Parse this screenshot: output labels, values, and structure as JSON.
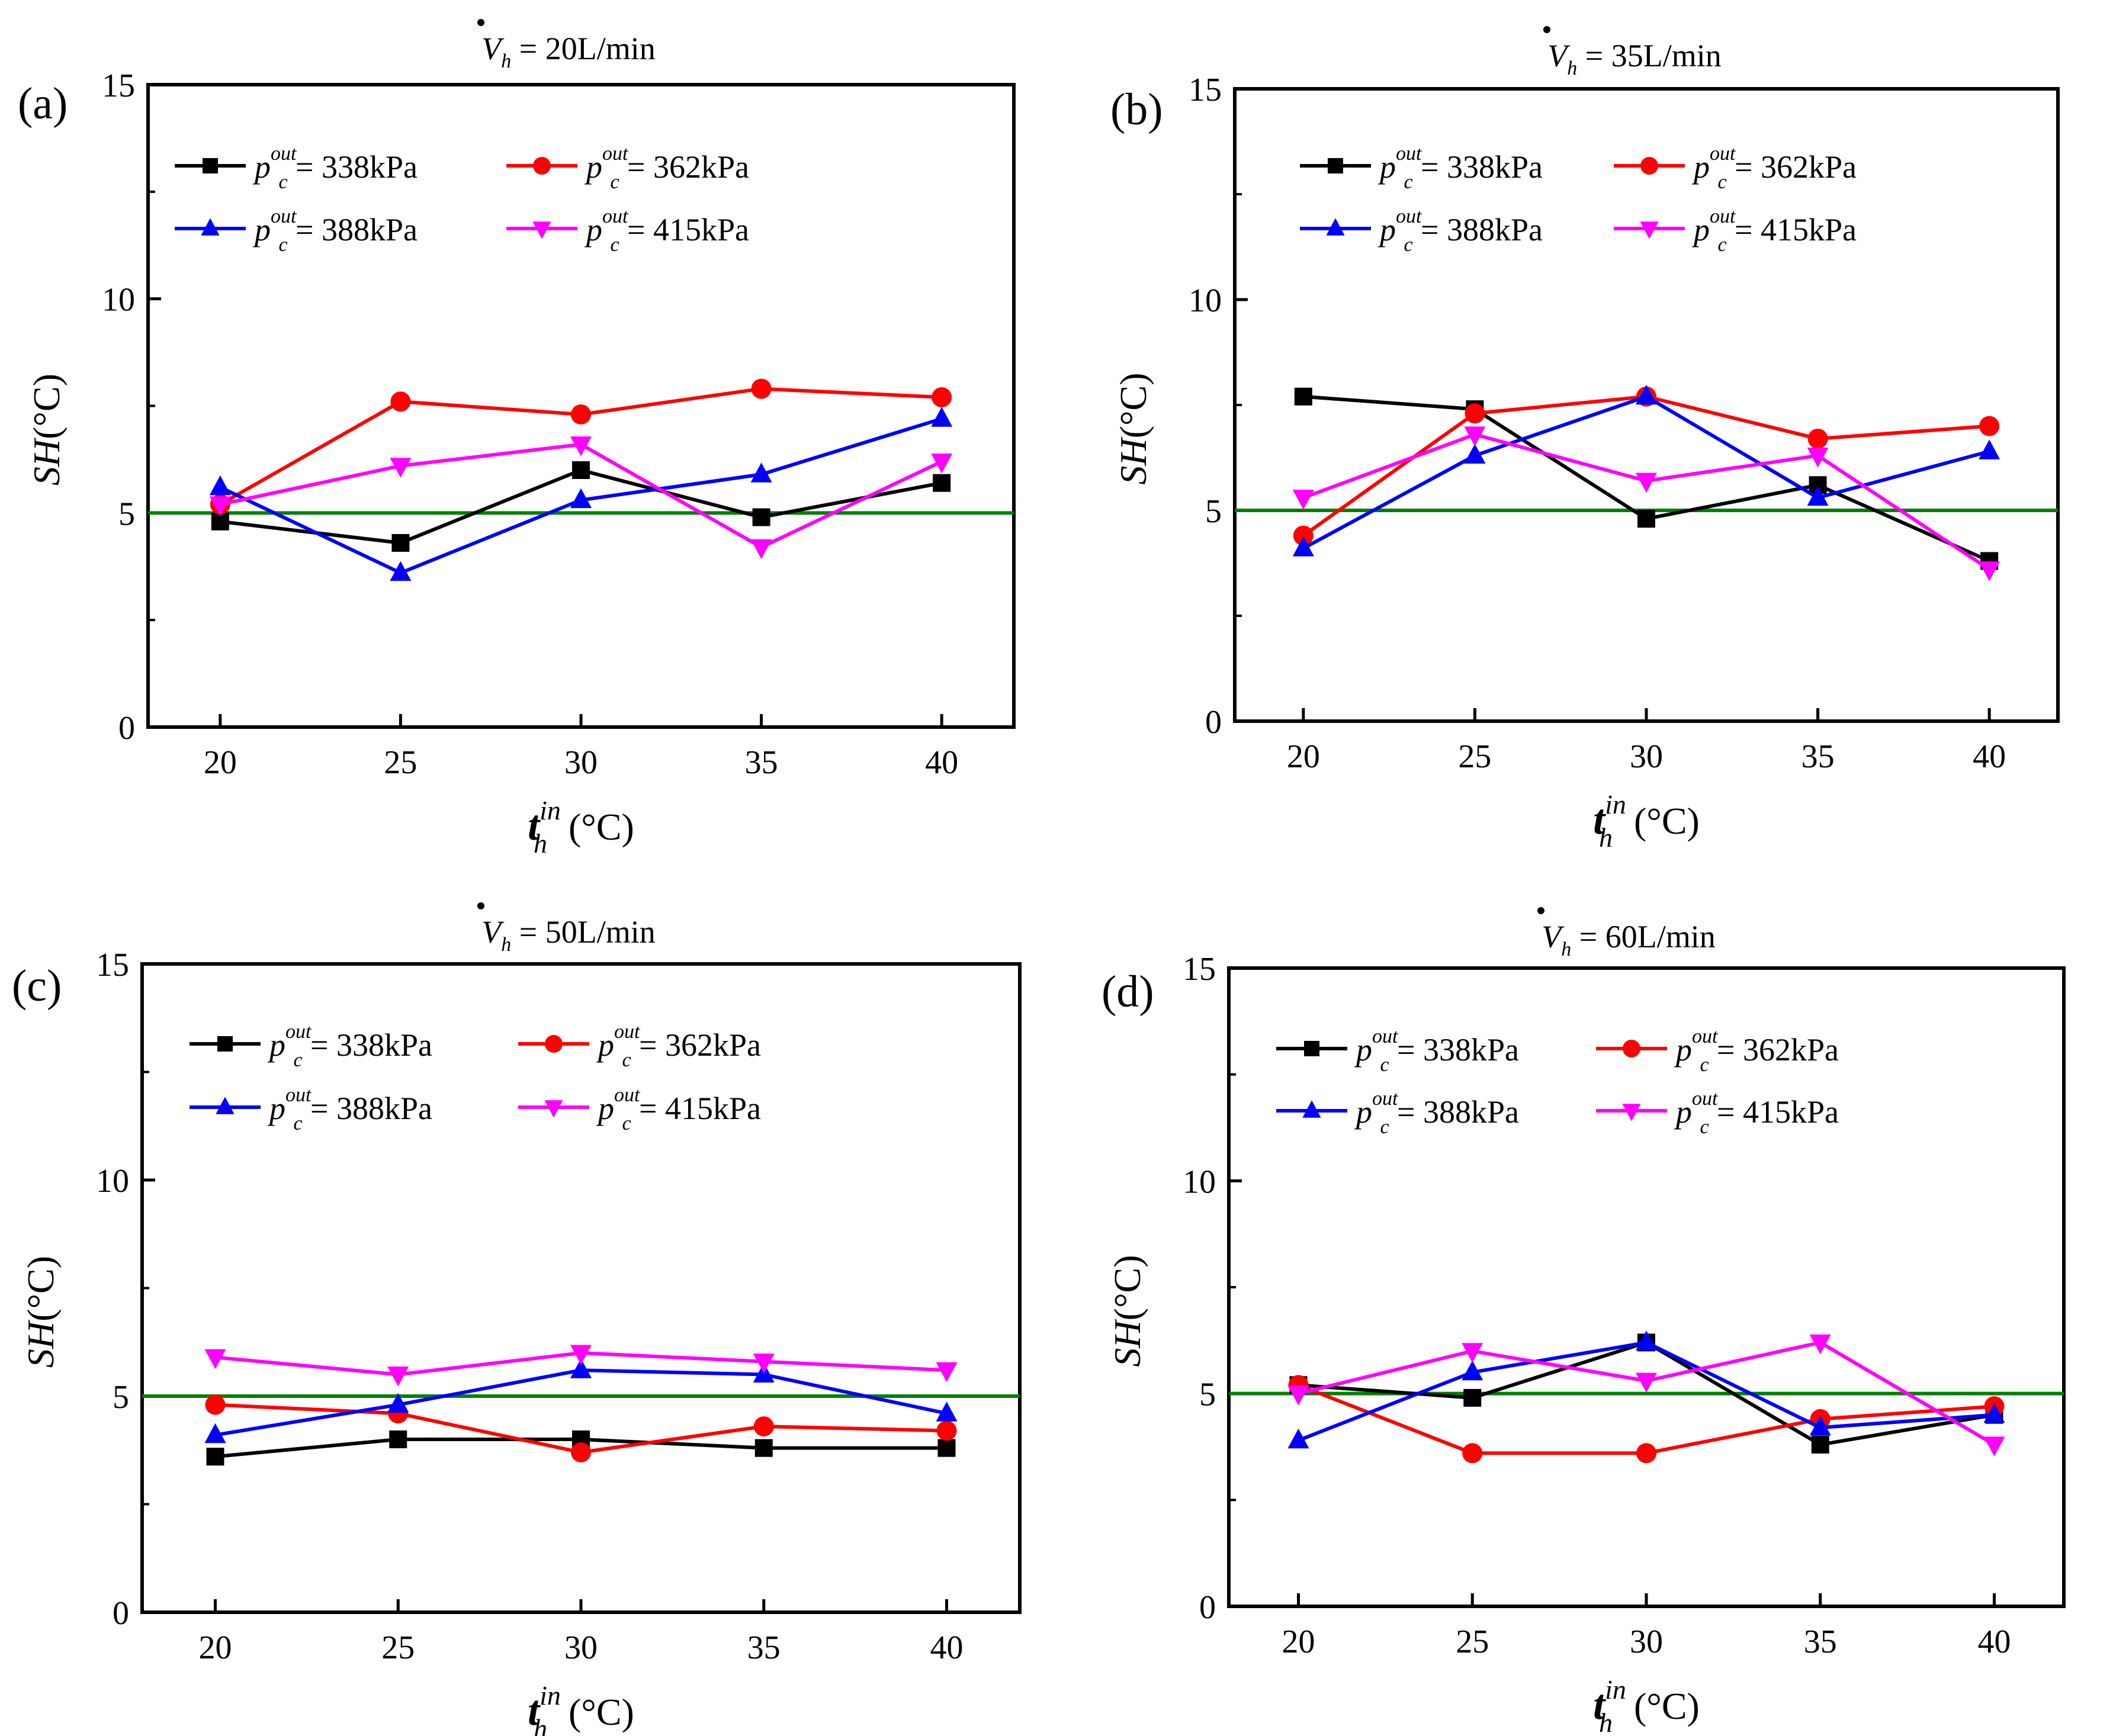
{
  "colors": {
    "s338": "#000000",
    "s362": "#ff0000",
    "s388": "#0000ff",
    "s415": "#ff00ff",
    "threshold": "#008000"
  },
  "legend": {
    "p_symbol": "p",
    "p_sup": "out",
    "p_sub": "c",
    "eq": "=",
    "entries": [
      "338kPa",
      "362kPa",
      "388kPa",
      "415kPa"
    ]
  },
  "axes_text": {
    "ylabel_main": "SH",
    "ylabel_unit": "(°C)",
    "xlabel_main": "t",
    "xlabel_sup": "in",
    "xlabel_sub": "h",
    "xlabel_unit": "(°C)",
    "title_symbol": "V",
    "title_sub": "h",
    "title_eq": "="
  },
  "chart_data": [
    {
      "type": "line",
      "panel": "(a)",
      "title_value": "20L/min",
      "x": [
        20,
        25,
        30,
        35,
        40
      ],
      "xticks": [
        "20",
        "25",
        "30",
        "35",
        "40"
      ],
      "yticks": [
        "0",
        "5",
        "10",
        "15"
      ],
      "ylim": [
        0,
        15
      ],
      "xlim": [
        18,
        42
      ],
      "threshold": 5,
      "series": [
        {
          "name": "338kPa",
          "marker": "square",
          "values": [
            4.8,
            4.3,
            6.0,
            4.9,
            5.7
          ]
        },
        {
          "name": "362kPa",
          "marker": "circle",
          "values": [
            5.2,
            7.6,
            7.3,
            7.9,
            7.7
          ]
        },
        {
          "name": "388kPa",
          "marker": "triangle-up",
          "values": [
            5.6,
            3.6,
            5.3,
            5.9,
            7.2
          ]
        },
        {
          "name": "415kPa",
          "marker": "triangle-down",
          "values": [
            5.2,
            6.1,
            6.6,
            4.2,
            6.2
          ]
        }
      ]
    },
    {
      "type": "line",
      "panel": "(b)",
      "title_value": "35L/min",
      "x": [
        20,
        25,
        30,
        35,
        40
      ],
      "xticks": [
        "20",
        "25",
        "30",
        "35",
        "40"
      ],
      "yticks": [
        "0",
        "5",
        "10",
        "15"
      ],
      "ylim": [
        0,
        15
      ],
      "xlim": [
        18,
        42
      ],
      "threshold": 5,
      "series": [
        {
          "name": "338kPa",
          "marker": "square",
          "values": [
            7.7,
            7.4,
            4.8,
            5.6,
            3.8
          ]
        },
        {
          "name": "362kPa",
          "marker": "circle",
          "values": [
            4.4,
            7.3,
            7.7,
            6.7,
            7.0
          ]
        },
        {
          "name": "388kPa",
          "marker": "triangle-up",
          "values": [
            4.1,
            6.3,
            7.7,
            5.3,
            6.4
          ]
        },
        {
          "name": "415kPa",
          "marker": "triangle-down",
          "values": [
            5.3,
            6.8,
            5.7,
            6.3,
            3.6
          ]
        }
      ]
    },
    {
      "type": "line",
      "panel": "(c)",
      "title_value": "50L/min",
      "x": [
        20,
        25,
        30,
        35,
        40
      ],
      "xticks": [
        "20",
        "25",
        "30",
        "35",
        "40"
      ],
      "yticks": [
        "0",
        "5",
        "10",
        "15"
      ],
      "ylim": [
        0,
        15
      ],
      "xlim": [
        18,
        42
      ],
      "threshold": 5,
      "series": [
        {
          "name": "338kPa",
          "marker": "square",
          "values": [
            3.6,
            4.0,
            4.0,
            3.8,
            3.8
          ]
        },
        {
          "name": "362kPa",
          "marker": "circle",
          "values": [
            4.8,
            4.6,
            3.7,
            4.3,
            4.2
          ]
        },
        {
          "name": "388kPa",
          "marker": "triangle-up",
          "values": [
            4.1,
            4.8,
            5.6,
            5.5,
            4.6
          ]
        },
        {
          "name": "415kPa",
          "marker": "triangle-down",
          "values": [
            5.9,
            5.5,
            6.0,
            5.8,
            5.6
          ]
        }
      ]
    },
    {
      "type": "line",
      "panel": "(d)",
      "title_value": "60L/min",
      "x": [
        20,
        25,
        30,
        35,
        40
      ],
      "xticks": [
        "20",
        "25",
        "30",
        "35",
        "40"
      ],
      "yticks": [
        "0",
        "5",
        "10",
        "15"
      ],
      "ylim": [
        0,
        15
      ],
      "xlim": [
        18,
        42
      ],
      "threshold": 5,
      "series": [
        {
          "name": "338kPa",
          "marker": "square",
          "values": [
            5.2,
            4.9,
            6.2,
            3.8,
            4.5
          ]
        },
        {
          "name": "362kPa",
          "marker": "circle",
          "values": [
            5.2,
            3.6,
            3.6,
            4.4,
            4.7
          ]
        },
        {
          "name": "388kPa",
          "marker": "triangle-up",
          "values": [
            3.9,
            5.5,
            6.2,
            4.2,
            4.5
          ]
        },
        {
          "name": "415kPa",
          "marker": "triangle-down",
          "values": [
            5.0,
            6.0,
            5.3,
            6.2,
            3.8
          ]
        }
      ]
    }
  ]
}
